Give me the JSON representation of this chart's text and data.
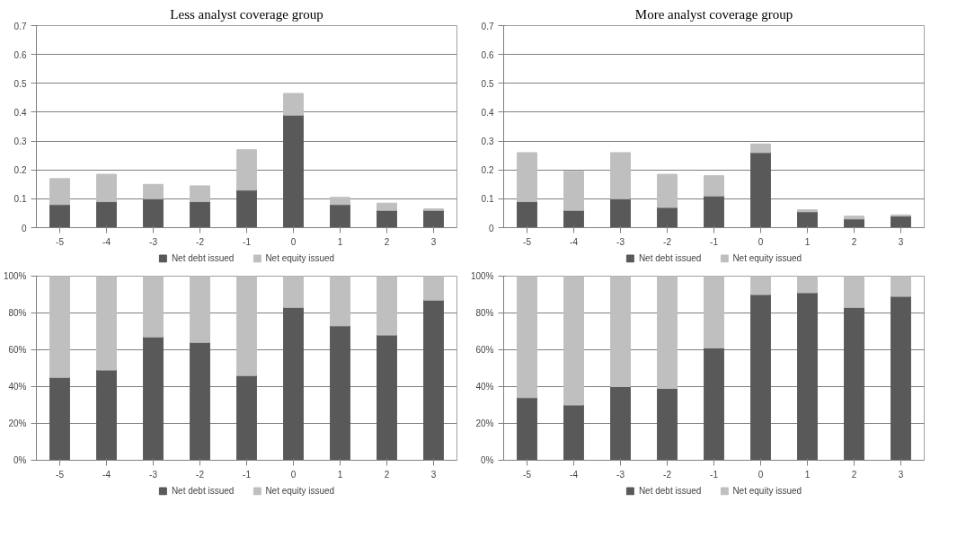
{
  "chart_data": [
    {
      "type": "bar",
      "title": "Less analyst coverage group",
      "categories": [
        "-5",
        "-4",
        "-3",
        "-2",
        "-1",
        "0",
        "1",
        "2",
        "3"
      ],
      "stacked": true,
      "ylim": [
        0,
        0.7
      ],
      "yticks": [
        0,
        0.1,
        0.2,
        0.3,
        0.4,
        0.5,
        0.6,
        0.7
      ],
      "grid": "y",
      "legend": "bottom",
      "series": [
        {
          "name": "Net debt issued",
          "color": "#595959",
          "values": [
            0.08,
            0.09,
            0.1,
            0.09,
            0.13,
            0.39,
            0.08,
            0.06,
            0.06
          ]
        },
        {
          "name": "Net equity issued",
          "color": "#bfbfbf",
          "values": [
            0.09,
            0.095,
            0.05,
            0.055,
            0.14,
            0.075,
            0.025,
            0.025,
            0.005
          ]
        }
      ]
    },
    {
      "type": "bar",
      "title": "More analyst coverage group",
      "categories": [
        "-5",
        "-4",
        "-3",
        "-2",
        "-1",
        "0",
        "1",
        "2",
        "3"
      ],
      "stacked": true,
      "ylim": [
        0,
        0.7
      ],
      "yticks": [
        0,
        0.1,
        0.2,
        0.3,
        0.4,
        0.5,
        0.6,
        0.7
      ],
      "grid": "y",
      "legend": "bottom",
      "series": [
        {
          "name": "Net debt issued",
          "color": "#595959",
          "values": [
            0.09,
            0.06,
            0.1,
            0.07,
            0.11,
            0.26,
            0.055,
            0.03,
            0.04
          ]
        },
        {
          "name": "Net equity issued",
          "color": "#bfbfbf",
          "values": [
            0.17,
            0.135,
            0.16,
            0.115,
            0.07,
            0.03,
            0.007,
            0.01,
            0.004
          ]
        }
      ]
    },
    {
      "type": "bar",
      "categories": [
        "-5",
        "-4",
        "-3",
        "-2",
        "-1",
        "0",
        "1",
        "2",
        "3"
      ],
      "stacked": true,
      "ylim": [
        0,
        100
      ],
      "yticks": [
        {
          "value": 0,
          "label": "0%"
        },
        {
          "value": 20,
          "label": "20%"
        },
        {
          "value": 40,
          "label": "40%"
        },
        {
          "value": 60,
          "label": "60%"
        },
        {
          "value": 80,
          "label": "80%"
        },
        {
          "value": 100,
          "label": "100%"
        }
      ],
      "grid": "y",
      "legend": "bottom",
      "series": [
        {
          "name": "Net debt issued",
          "color": "#595959",
          "values": [
            45,
            49,
            67,
            64,
            46,
            83,
            73,
            68,
            87
          ]
        },
        {
          "name": "Net equity issued",
          "color": "#bfbfbf",
          "values": [
            55,
            51,
            33,
            36,
            54,
            17,
            27,
            32,
            13
          ]
        }
      ]
    },
    {
      "type": "bar",
      "categories": [
        "-5",
        "-4",
        "-3",
        "-2",
        "-1",
        "0",
        "1",
        "2",
        "3"
      ],
      "stacked": true,
      "ylim": [
        0,
        100
      ],
      "yticks": [
        {
          "value": 0,
          "label": "0%"
        },
        {
          "value": 20,
          "label": "20%"
        },
        {
          "value": 40,
          "label": "40%"
        },
        {
          "value": 60,
          "label": "60%"
        },
        {
          "value": 80,
          "label": "80%"
        },
        {
          "value": 100,
          "label": "100%"
        }
      ],
      "grid": "y",
      "legend": "bottom",
      "series": [
        {
          "name": "Net debt issued",
          "color": "#595959",
          "values": [
            34,
            30,
            40,
            39,
            61,
            90,
            91,
            83,
            89
          ]
        },
        {
          "name": "Net equity issued",
          "color": "#bfbfbf",
          "values": [
            66,
            70,
            60,
            61,
            39,
            10,
            9,
            17,
            11
          ]
        }
      ]
    }
  ]
}
